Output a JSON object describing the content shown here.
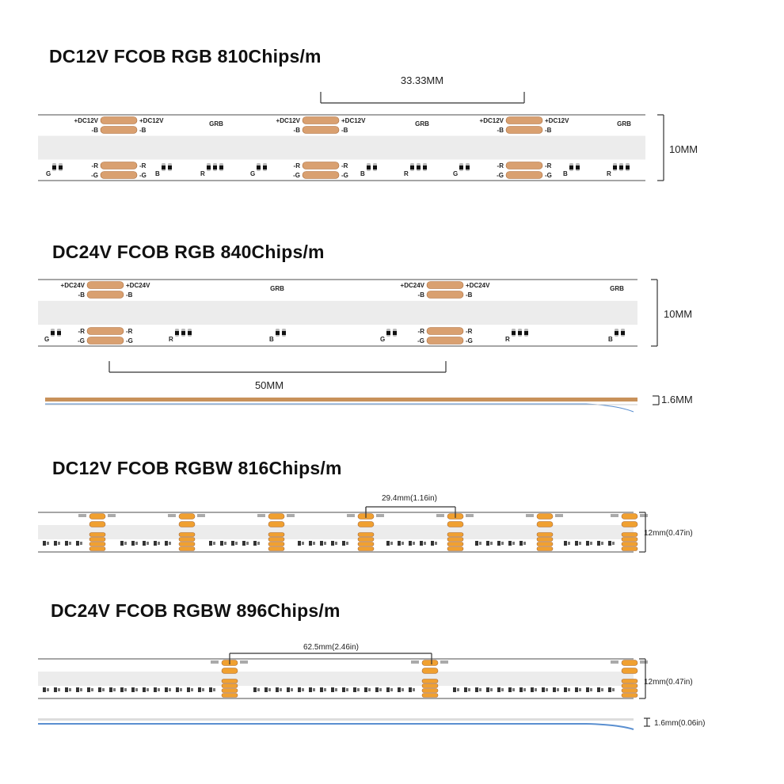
{
  "sections": [
    {
      "title": "DC12V FCOB RGB 810Chips/m",
      "cut_length": "33.33MM",
      "width": "10MM",
      "labels": {
        "power": "+DC12V",
        "b": "-B",
        "r": "-R",
        "g": "-G",
        "order": "GRB",
        "G": "G",
        "B": "B",
        "R": "R"
      }
    },
    {
      "title": "DC24V FCOB RGB 840Chips/m",
      "cut_length": "50MM",
      "width": "10MM",
      "thickness": "1.6MM",
      "labels": {
        "power": "+DC24V",
        "b": "-B",
        "r": "-R",
        "g": "-G",
        "order": "GRB",
        "G": "G",
        "B": "B",
        "R": "R"
      }
    },
    {
      "title": "DC12V FCOB RGBW 816Chips/m",
      "cut_length": "29.4mm(1.16in)",
      "width": "12mm(0.47in)"
    },
    {
      "title": "DC24V FCOB RGBW 896Chips/m",
      "cut_length": "62.5mm(2.46in)",
      "width": "12mm(0.47in)",
      "thickness": "1.6mm(0.06in)"
    }
  ],
  "colors": {
    "pad": "#d9a070",
    "pad_rgbw": "#f0a030",
    "strip_border": "#888888",
    "diffuser": "#ececec",
    "profile_copper": "#c8915a",
    "profile_blue": "#5a8fd0"
  }
}
